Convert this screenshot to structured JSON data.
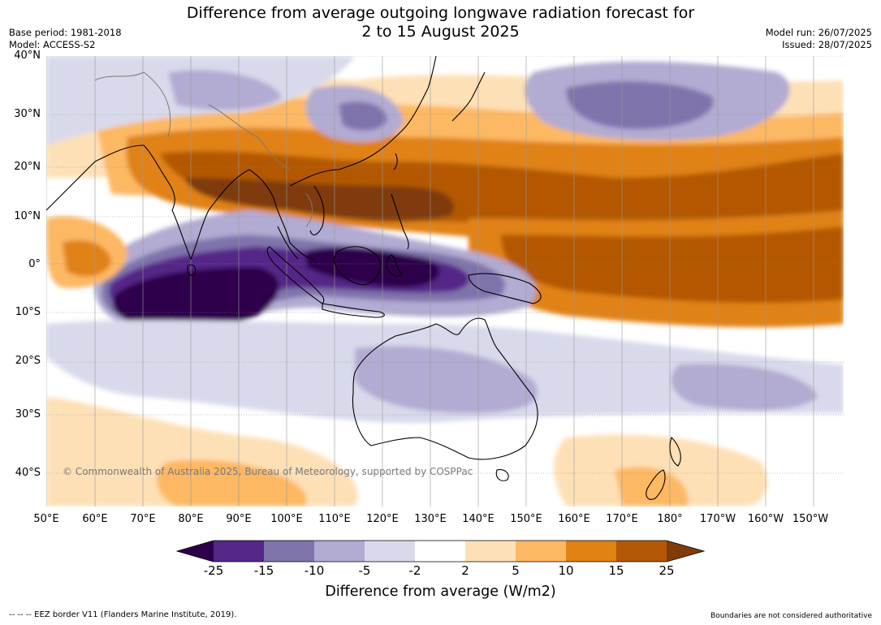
{
  "title": {
    "line1": "Difference from average outgoing longwave radiation forecast for",
    "line2": "2 to 15 August 2025"
  },
  "meta": {
    "base_period": "Base period: 1981-2018",
    "model": "Model: ACCESS-S2",
    "model_run": "Model run: 26/07/2025",
    "issued": "Issued: 28/07/2025"
  },
  "map": {
    "lat_labels": [
      "40°N",
      "30°N",
      "20°N",
      "10°N",
      "0°",
      "10°S",
      "20°S",
      "30°S",
      "40°S"
    ],
    "lon_labels": [
      "50°E",
      "60°E",
      "70°E",
      "80°E",
      "90°E",
      "100°E",
      "110°E",
      "120°E",
      "130°E",
      "140°E",
      "150°E",
      "160°E",
      "170°E",
      "180°",
      "170°W",
      "160°W",
      "150°W"
    ],
    "copyright": "© Commonwealth of Australia 2025, Bureau of Meteorology, supported by COSPPac"
  },
  "colorbar": {
    "labels": [
      "-25",
      "-15",
      "-10",
      "-5",
      "-2",
      "2",
      "5",
      "10",
      "15",
      "25"
    ],
    "colors": [
      "#2d004b",
      "#542788",
      "#8073ac",
      "#b2abd2",
      "#d8daeb",
      "#ffffff",
      "#fee0b6",
      "#fdb863",
      "#e08214",
      "#b35806",
      "#7f3b08"
    ],
    "title": "Difference from average (W/m2)"
  },
  "footer": {
    "eez_note": "--  --  -- EEZ border V11 (Flanders Marine Institute, 2019).",
    "boundaries_note": "Boundaries are not considered authoritative"
  }
}
